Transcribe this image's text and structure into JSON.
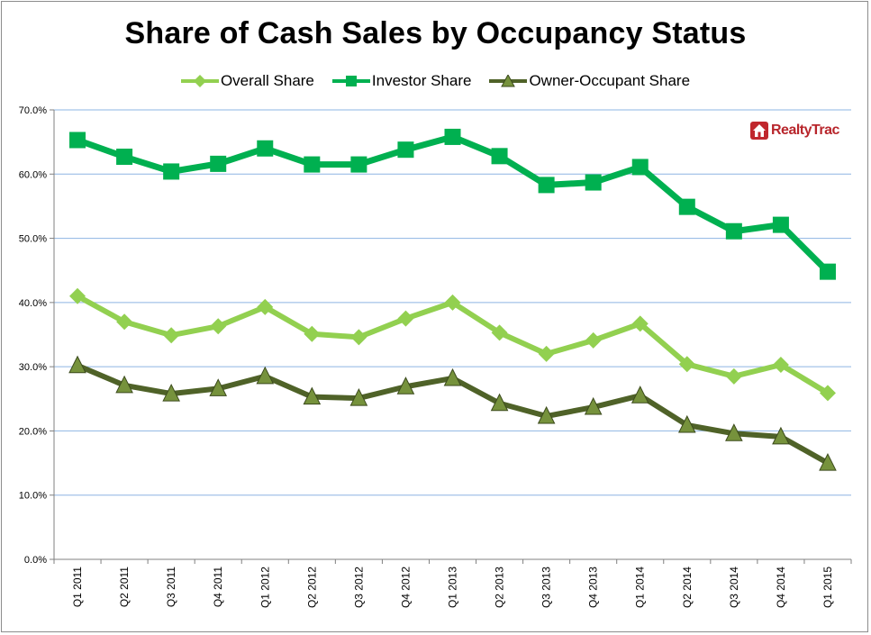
{
  "logo": {
    "text": "RealtyTrac"
  },
  "chart_data": {
    "type": "line",
    "title": "Share of Cash Sales by Occupancy Status",
    "xlabel": "",
    "ylabel": "",
    "ylim": [
      0,
      70
    ],
    "yticks": [
      "0.0%",
      "10.0%",
      "20.0%",
      "30.0%",
      "40.0%",
      "50.0%",
      "60.0%",
      "70.0%"
    ],
    "ytick_values": [
      0,
      10,
      20,
      30,
      40,
      50,
      60,
      70
    ],
    "grid": true,
    "legend_position": "top",
    "categories": [
      "Q1 2011",
      "Q2 2011",
      "Q3 2011",
      "Q4 2011",
      "Q1 2012",
      "Q2 2012",
      "Q3 2012",
      "Q4 2012",
      "Q1 2013",
      "Q2 2013",
      "Q3 2013",
      "Q4 2013",
      "Q1 2014",
      "Q2 2014",
      "Q3 2014",
      "Q4 2014",
      "Q1 2015"
    ],
    "series": [
      {
        "name": "Overall Share",
        "marker": "diamond",
        "color": "#92d050",
        "values": [
          41.0,
          37.0,
          34.9,
          36.3,
          39.3,
          35.1,
          34.6,
          37.5,
          40.0,
          35.3,
          32.0,
          34.1,
          36.7,
          30.4,
          28.5,
          30.3,
          25.9
        ]
      },
      {
        "name": "Investor Share",
        "marker": "square",
        "color": "#00b050",
        "values": [
          65.3,
          62.7,
          60.4,
          61.6,
          64.0,
          61.5,
          61.5,
          63.8,
          65.8,
          62.8,
          58.3,
          58.7,
          61.1,
          54.9,
          51.1,
          52.1,
          44.8
        ]
      },
      {
        "name": "Owner-Occupant Share",
        "marker": "triangle",
        "color": "#4f6228",
        "values": [
          30.2,
          27.1,
          25.8,
          26.6,
          28.5,
          25.3,
          25.1,
          26.9,
          28.2,
          24.3,
          22.3,
          23.7,
          25.5,
          20.9,
          19.6,
          19.1,
          15.0
        ]
      }
    ]
  }
}
